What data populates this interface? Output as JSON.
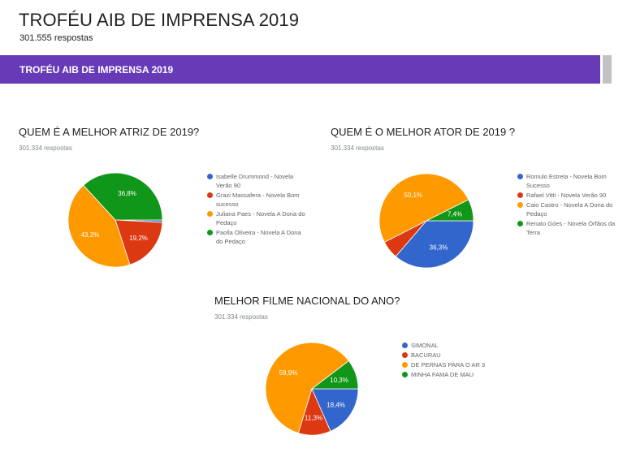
{
  "header": {
    "title": "TROFÉU AIB DE IMPRENSA 2019",
    "responses": "301.555 respostas"
  },
  "banner": {
    "title": "TROFÉU AIB DE IMPRENSA 2019",
    "color": "#673ab7"
  },
  "palette": [
    "#3366cc",
    "#dc3912",
    "#ff9900",
    "#109618"
  ],
  "chart_data": [
    {
      "type": "pie",
      "title": "QUEM É A MELHOR ATRIZ DE 2019?",
      "subtitle": "301.334 respostas",
      "legend_position": "right",
      "categories": [
        "Isabelle Drummond - Novela Verão 90",
        "Grazi Massafera - Novela Bom sucesso",
        "Juliana Paes - Novela A Dona do Pedaço",
        "Paolla Oliveira - Novela A Dona do Pedaço"
      ],
      "values": [
        0.8,
        19.2,
        43.2,
        36.8
      ],
      "labels": [
        "",
        "19,2%",
        "43,2%",
        "36,8%"
      ]
    },
    {
      "type": "pie",
      "title": "QUEM É O MELHOR ATOR DE 2019 ?",
      "subtitle": "301.334 respostas",
      "legend_position": "right",
      "categories": [
        "Romulo Estrela - Novela Bom Sucesso",
        "Rafael Vitti - Novela Verão 90",
        "Caio Castro - Novela A Dona do Pedaço",
        "Renato Góes - Novela Órfãos da Terra"
      ],
      "values": [
        36.3,
        6.2,
        50.1,
        7.4
      ],
      "labels": [
        "36,3%",
        "",
        "50,1%",
        "7,4%"
      ]
    },
    {
      "type": "pie",
      "title": "MELHOR FILME NACIONAL DO ANO?",
      "subtitle": "301.334 respostas",
      "legend_position": "right",
      "categories": [
        "SIMONAL",
        "BACURAU",
        "DE PERNAS PARA O AR 3",
        "MINHA FAMA DE MAU"
      ],
      "values": [
        18.4,
        11.3,
        59.9,
        10.3
      ],
      "labels": [
        "18,4%",
        "11,3%",
        "59,9%",
        "10,3%"
      ]
    }
  ]
}
